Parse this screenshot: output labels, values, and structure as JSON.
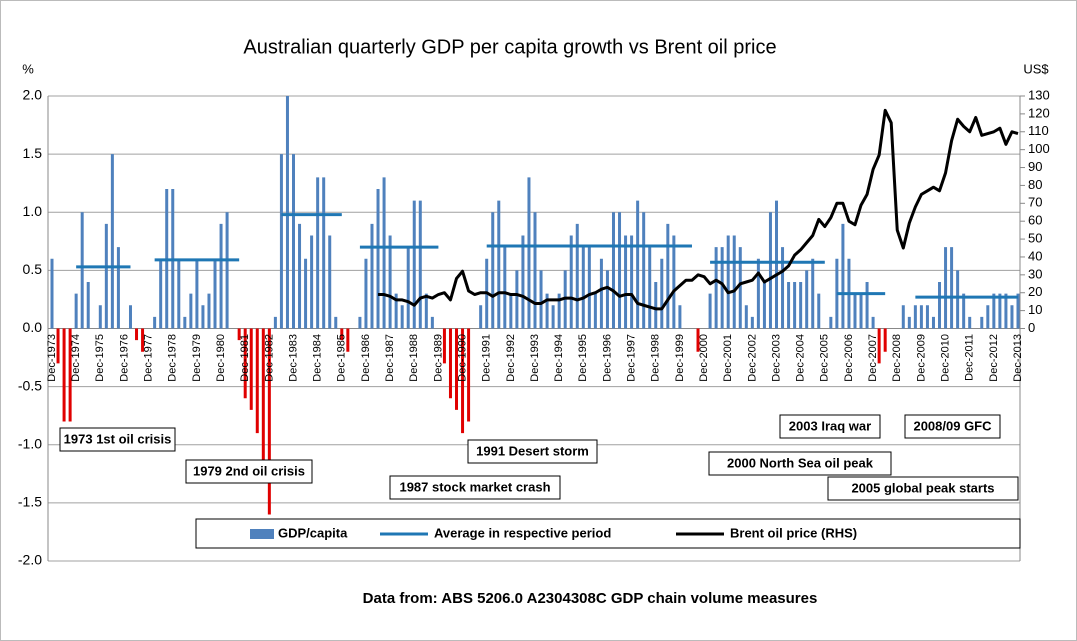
{
  "chart_data": {
    "type": "bar",
    "title": "Australian quarterly GDP per capita growth vs Brent oil price",
    "y_label": "%",
    "y2_label": "US$",
    "source": "Data from:    ABS 5206.0 A2304308C GDP chain volume measures",
    "categories": [
      "Dec-1973",
      null,
      null,
      null,
      "Dec-1974",
      null,
      null,
      null,
      "Dec-1975",
      null,
      null,
      null,
      "Dec-1976",
      null,
      null,
      null,
      "Dec-1977",
      null,
      null,
      null,
      "Dec-1978",
      null,
      null,
      null,
      "Dec-1979",
      null,
      null,
      null,
      "Dec-1980",
      null,
      null,
      null,
      "Dec-1981",
      null,
      null,
      null,
      "Dec-1982",
      null,
      null,
      null,
      "Dec-1983",
      null,
      null,
      null,
      "Dec-1984",
      null,
      null,
      null,
      "Dec-1985",
      null,
      null,
      null,
      "Dec-1986",
      null,
      null,
      null,
      "Dec-1987",
      null,
      null,
      null,
      "Dec-1988",
      null,
      null,
      null,
      "Dec-1989",
      null,
      null,
      null,
      "Dec-1990",
      null,
      null,
      null,
      "Dec-1991",
      null,
      null,
      null,
      "Dec-1992",
      null,
      null,
      null,
      "Dec-1993",
      null,
      null,
      null,
      "Dec-1994",
      null,
      null,
      null,
      "Dec-1995",
      null,
      null,
      null,
      "Dec-1996",
      null,
      null,
      null,
      "Dec-1997",
      null,
      null,
      null,
      "Dec-1998",
      null,
      null,
      null,
      "Dec-1999",
      null,
      null,
      null,
      "Dec-2000",
      null,
      null,
      null,
      "Dec-2001",
      null,
      null,
      null,
      "Dec-2002",
      null,
      null,
      null,
      "Dec-2003",
      null,
      null,
      null,
      "Dec-2004",
      null,
      null,
      null,
      "Dec-2005",
      null,
      null,
      null,
      "Dec-2006",
      null,
      null,
      null,
      "Dec-2007",
      null,
      null,
      null,
      "Dec-2008",
      null,
      null,
      null,
      "Dec-2009",
      null,
      null,
      null,
      "Dec-2010",
      null,
      null,
      null,
      "Dec-2011",
      null,
      null,
      null,
      "Dec-2012",
      null,
      null,
      null,
      "Dec-2013"
    ],
    "series": [
      {
        "name": "GDP/capita",
        "type": "bar",
        "color": "#4f81bd",
        "negative_color": "#e00000",
        "values": [
          0.6,
          -0.3,
          -0.8,
          -0.8,
          0.3,
          1.0,
          0.4,
          0.0,
          0.2,
          0.9,
          1.5,
          0.7,
          0.0,
          0.2,
          -0.1,
          -0.2,
          0.0,
          0.1,
          0.6,
          1.2,
          1.2,
          0.6,
          0.1,
          0.3,
          0.6,
          0.2,
          0.3,
          0.6,
          0.9,
          1.0,
          0.0,
          -0.1,
          -0.6,
          -0.7,
          -0.9,
          -1.2,
          -1.6,
          0.1,
          1.5,
          2.0,
          1.5,
          0.9,
          0.6,
          0.8,
          1.3,
          1.3,
          0.8,
          0.1,
          -0.1,
          -0.2,
          0.0,
          0.1,
          0.6,
          0.9,
          1.2,
          1.3,
          0.8,
          0.3,
          0.2,
          0.7,
          1.1,
          1.1,
          0.3,
          0.1,
          0.0,
          -0.3,
          -0.6,
          -0.7,
          -0.9,
          -0.8,
          0.0,
          0.2,
          0.6,
          1.0,
          1.1,
          0.7,
          0.3,
          0.5,
          0.8,
          1.3,
          1.0,
          0.5,
          0.3,
          0.2,
          0.3,
          0.5,
          0.8,
          0.9,
          0.7,
          0.7,
          0.3,
          0.6,
          0.5,
          1.0,
          1.0,
          0.8,
          0.8,
          1.1,
          1.0,
          0.7,
          0.4,
          0.6,
          0.9,
          0.8,
          0.2,
          0.0,
          0.0,
          -0.2,
          0.0,
          0.3,
          0.7,
          0.7,
          0.8,
          0.8,
          0.7,
          0.2,
          0.1,
          0.6,
          0.4,
          1.0,
          1.1,
          0.7,
          0.4,
          0.4,
          0.4,
          0.5,
          0.6,
          0.3,
          0.0,
          0.1,
          0.6,
          0.9,
          0.6,
          0.3,
          0.3,
          0.4,
          0.1,
          -0.3,
          -0.2,
          0.0,
          0.0,
          0.2,
          0.1,
          0.2,
          0.2,
          0.2,
          0.1,
          0.4,
          0.7,
          0.7,
          0.5,
          0.3,
          0.1,
          0.0,
          0.1,
          0.2,
          0.3,
          0.3,
          0.3,
          0.2,
          0.3
        ]
      },
      {
        "name": "Average in respective period",
        "type": "line",
        "color": "#1f77b4",
        "values": [
          null,
          null,
          null,
          null,
          0.53,
          0.53,
          0.53,
          0.53,
          0.53,
          0.53,
          0.53,
          0.53,
          0.53,
          0.53,
          null,
          null,
          null,
          0.59,
          0.59,
          0.59,
          0.59,
          0.59,
          0.59,
          0.59,
          0.59,
          0.59,
          0.59,
          0.59,
          0.59,
          0.59,
          0.59,
          0.59,
          null,
          null,
          null,
          null,
          null,
          null,
          0.98,
          0.98,
          0.98,
          0.98,
          0.98,
          0.98,
          0.98,
          0.98,
          0.98,
          0.98,
          0.98,
          null,
          null,
          0.7,
          0.7,
          0.7,
          0.7,
          0.7,
          0.7,
          0.7,
          0.7,
          0.7,
          0.7,
          0.7,
          0.7,
          0.7,
          0.7,
          null,
          null,
          null,
          null,
          null,
          null,
          null,
          0.71,
          0.71,
          0.71,
          0.71,
          0.71,
          0.71,
          0.71,
          0.71,
          0.71,
          0.71,
          0.71,
          0.71,
          0.71,
          0.71,
          0.71,
          0.71,
          0.71,
          0.71,
          0.71,
          0.71,
          0.71,
          0.71,
          0.71,
          0.71,
          0.71,
          0.71,
          0.71,
          0.71,
          0.71,
          0.71,
          0.71,
          0.71,
          0.71,
          0.71,
          0.71,
          null,
          null,
          0.57,
          0.57,
          0.57,
          0.57,
          0.57,
          0.57,
          0.57,
          0.57,
          0.57,
          0.57,
          0.57,
          0.57,
          0.57,
          0.57,
          0.57,
          0.57,
          0.57,
          0.57,
          0.57,
          0.57,
          null,
          0.3,
          0.3,
          0.3,
          0.3,
          0.3,
          0.3,
          0.3,
          0.3,
          0.3,
          null,
          null,
          null,
          null,
          0.27,
          0.27,
          0.27,
          0.27,
          0.27,
          0.27,
          0.27,
          0.27,
          0.27,
          0.27,
          0.27,
          0.27,
          0.27,
          0.27,
          0.27,
          0.27,
          0.27,
          0.27
        ]
      },
      {
        "name": "Brent oil price (RHS)",
        "type": "line",
        "axis": "y2",
        "color": "#000000",
        "values": [
          null,
          null,
          null,
          null,
          null,
          null,
          null,
          null,
          null,
          null,
          null,
          null,
          null,
          null,
          null,
          null,
          null,
          null,
          null,
          null,
          null,
          null,
          null,
          null,
          null,
          null,
          null,
          null,
          null,
          null,
          null,
          null,
          null,
          null,
          null,
          null,
          null,
          null,
          null,
          null,
          null,
          null,
          null,
          null,
          null,
          null,
          null,
          null,
          null,
          null,
          null,
          null,
          null,
          null,
          19,
          19,
          18,
          16,
          16,
          15,
          13,
          17,
          18,
          17,
          19,
          20,
          16,
          28,
          32,
          21,
          19,
          20,
          20,
          18,
          20,
          20,
          19,
          19,
          18,
          16,
          14,
          14,
          16,
          16,
          16,
          17,
          17,
          16,
          17,
          19,
          20,
          22,
          23,
          21,
          18,
          19,
          19,
          14,
          13,
          12,
          11,
          11,
          16,
          21,
          24,
          27,
          27,
          30,
          29,
          25,
          27,
          25,
          20,
          21,
          25,
          26,
          27,
          31,
          26,
          28,
          30,
          32,
          35,
          41,
          44,
          48,
          52,
          61,
          57,
          62,
          70,
          70,
          60,
          58,
          69,
          75,
          89,
          97,
          122,
          115,
          55,
          45,
          59,
          68,
          75,
          77,
          79,
          77,
          87,
          105,
          117,
          113,
          110,
          118,
          108,
          109,
          110,
          112,
          103,
          110,
          109
        ]
      }
    ],
    "ylim": [
      -2,
      2
    ],
    "yticks": [
      {
        "value": -2,
        "label": "-2.0"
      },
      -1.5,
      {
        "value": -1,
        "label": "-1.0"
      },
      -0.5,
      {
        "value": 0,
        "label": "0.0"
      },
      0.5,
      {
        "value": 1,
        "label": "1.0"
      },
      1.5,
      {
        "value": 2,
        "label": "2.0"
      }
    ],
    "y2lim": [
      -130,
      130
    ],
    "y2ticks": [
      0,
      10,
      20,
      30,
      40,
      50,
      60,
      70,
      80,
      90,
      100,
      110,
      120,
      130
    ],
    "grid": true,
    "legend": "bottom",
    "annotations": [
      "1973 1st oil crisis",
      "1979 2nd oil crisis",
      "1987 stock market crash",
      "1991 Desert storm",
      "2000 North Sea oil peak",
      "2003 Iraq war",
      "2008/09 GFC",
      "2005 global peak starts"
    ]
  }
}
